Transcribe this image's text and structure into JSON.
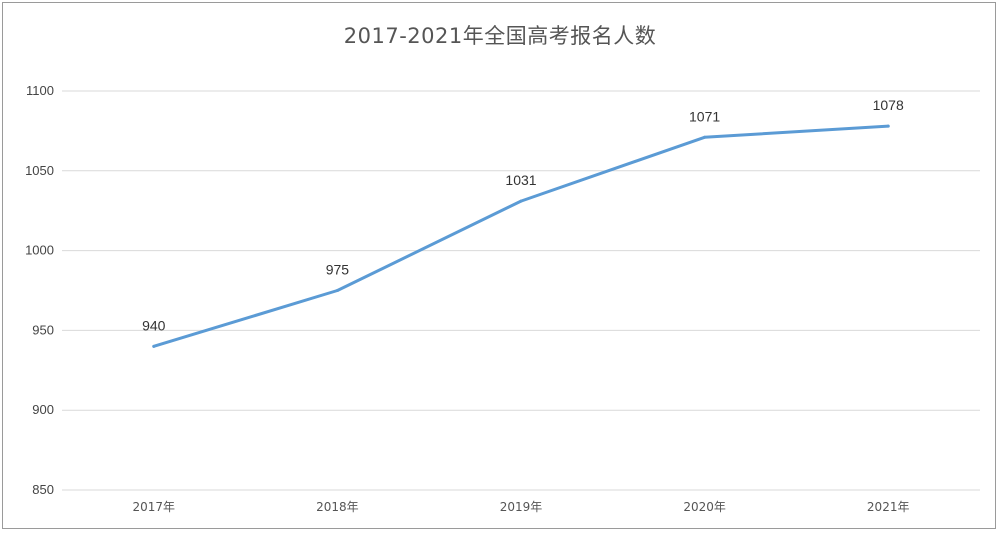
{
  "chart_data": {
    "type": "line",
    "title": "2017-2021年全国高考报名人数",
    "categories": [
      "2017年",
      "2018年",
      "2019年",
      "2020年",
      "2021年"
    ],
    "series": [
      {
        "values": [
          940,
          975,
          1031,
          1071,
          1078
        ]
      }
    ],
    "data_labels": [
      "940",
      "975",
      "1031",
      "1071",
      "1078"
    ],
    "ylim": [
      850,
      1100
    ],
    "yticks": [
      850,
      900,
      950,
      1000,
      1050,
      1100
    ],
    "grid": true,
    "line_color": "#5b9bd5",
    "grid_color": "#d9d9d9"
  }
}
